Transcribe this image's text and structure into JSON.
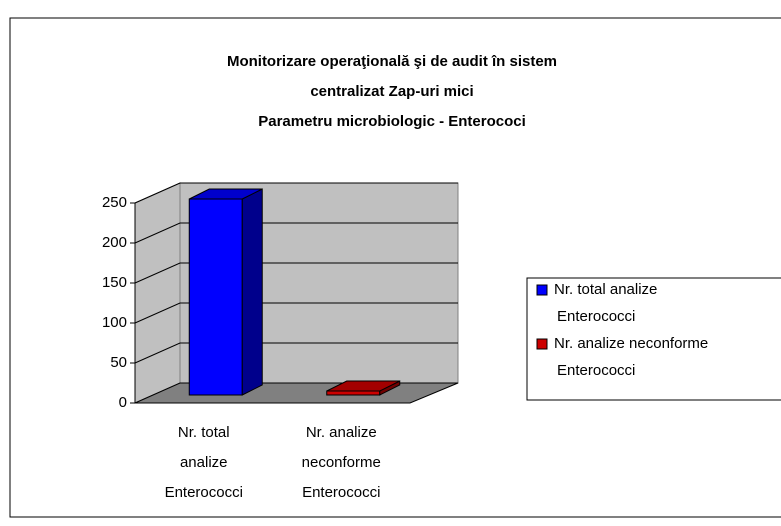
{
  "chart_data": {
    "type": "bar3d",
    "title_lines": [
      "Monitorizare operaţională şi de audit în sistem",
      "centralizat  Zap-uri mici",
      "Parametru  microbiologic - Enterococi"
    ],
    "categories": [
      "Nr. total analize Enterococci",
      "Nr. analize neconforme Enterococci"
    ],
    "values": [
      245,
      5
    ],
    "colors": [
      "#0000ff",
      "#cc0000"
    ],
    "ylim": [
      0,
      250
    ],
    "yticks": [
      0,
      50,
      100,
      150,
      200,
      250
    ],
    "grid": true,
    "legend": "right"
  }
}
